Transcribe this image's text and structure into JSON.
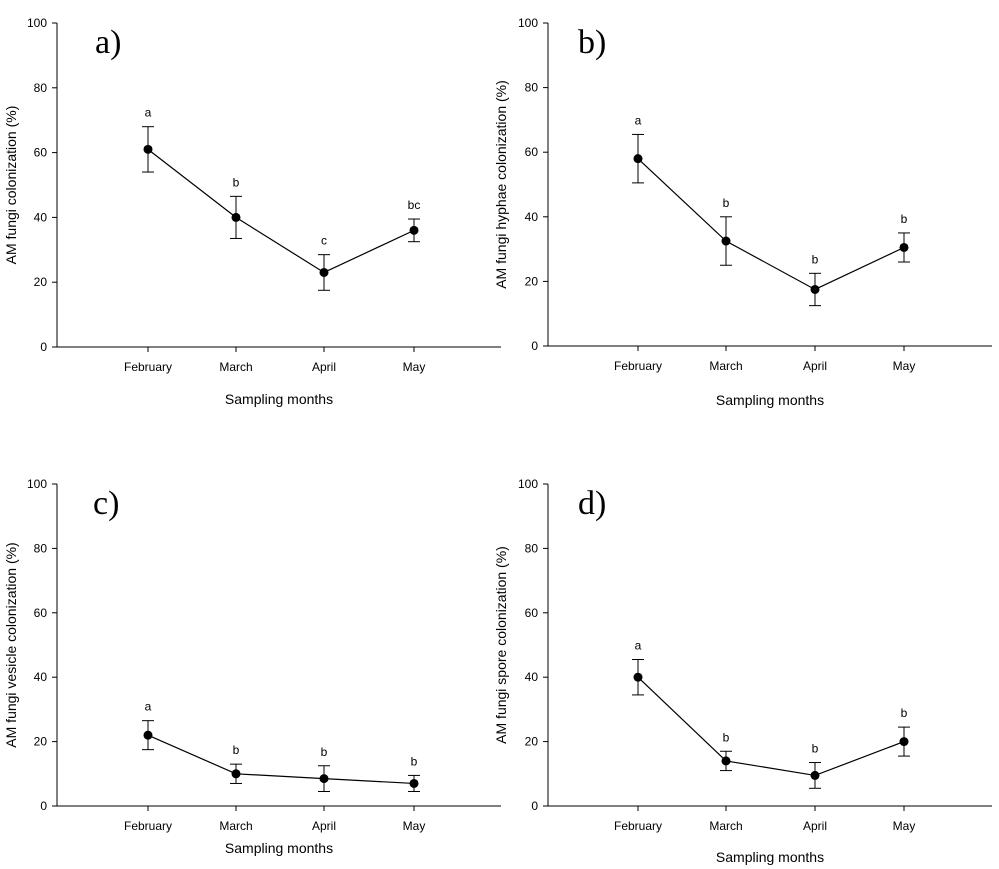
{
  "chart_data": [
    {
      "type": "line",
      "panel": "a)",
      "title": "",
      "xlabel": "Sampling months",
      "ylabel": "AM fungi colonization (%)",
      "categories": [
        "February",
        "March",
        "April",
        "May"
      ],
      "values": [
        61,
        40,
        23,
        36
      ],
      "errors": [
        7,
        6.5,
        5.5,
        3.5
      ],
      "letters": [
        "a",
        "b",
        "c",
        "bc"
      ],
      "ylim": [
        0,
        100
      ],
      "yticks": [
        0,
        20,
        40,
        60,
        80,
        100
      ]
    },
    {
      "type": "line",
      "panel": "b)",
      "title": "",
      "xlabel": "Sampling months",
      "ylabel": "AM  fungi hyphae colonization (%)",
      "categories": [
        "February",
        "March",
        "April",
        "May"
      ],
      "values": [
        58,
        32.5,
        17.5,
        30.5
      ],
      "errors": [
        7.5,
        7.5,
        5,
        4.5
      ],
      "letters": [
        "a",
        "b",
        "b",
        "b"
      ],
      "ylim": [
        0,
        100
      ],
      "yticks": [
        0,
        20,
        40,
        60,
        80,
        100
      ]
    },
    {
      "type": "line",
      "panel": "c)",
      "title": "",
      "xlabel": "Sampling months",
      "ylabel": "AM fungi vesicle colonization (%)",
      "categories": [
        "February",
        "March",
        "April",
        "May"
      ],
      "values": [
        22,
        10,
        8.5,
        7
      ],
      "errors": [
        4.5,
        3,
        4,
        2.5
      ],
      "letters": [
        "a",
        "b",
        "b",
        "b"
      ],
      "ylim": [
        0,
        100
      ],
      "yticks": [
        0,
        20,
        40,
        60,
        80,
        100
      ]
    },
    {
      "type": "line",
      "panel": "d)",
      "title": "",
      "xlabel": "Sampling months",
      "ylabel": "AM fungi spore colonization (%)",
      "categories": [
        "February",
        "March",
        "April",
        "May"
      ],
      "values": [
        40,
        14,
        9.5,
        20
      ],
      "errors": [
        5.5,
        3,
        4,
        4.5
      ],
      "letters": [
        "a",
        "b",
        "b",
        "b"
      ],
      "ylim": [
        0,
        100
      ],
      "yticks": [
        0,
        20,
        40,
        60,
        80,
        100
      ]
    }
  ]
}
